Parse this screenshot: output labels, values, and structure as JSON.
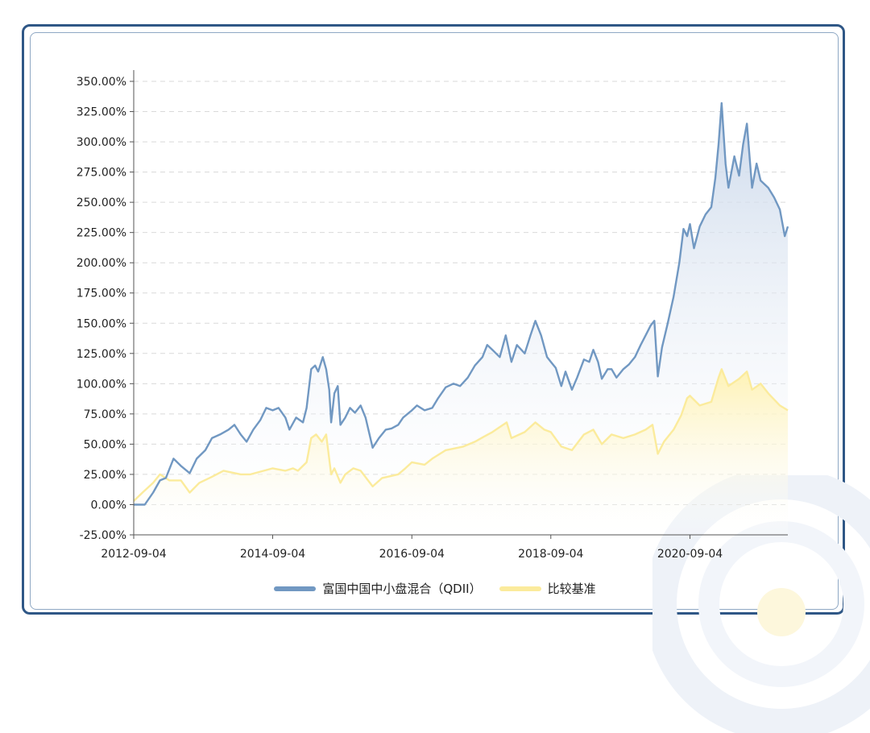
{
  "colors": {
    "frame": "#2f5786",
    "fund_line": "#7198c2",
    "benchmark_line": "#fbeb9c",
    "grid": "#d9d9d9",
    "axis": "#555555"
  },
  "chart_data": {
    "type": "area",
    "title": "",
    "xlabel": "",
    "ylabel": "",
    "x_tick_labels": [
      "2012-09-04",
      "2014-09-04",
      "2016-09-04",
      "2018-09-04",
      "2020-09-04"
    ],
    "y_tick_labels": [
      "-25.00%",
      "0.00%",
      "25.00%",
      "50.00%",
      "75.00%",
      "100.00%",
      "125.00%",
      "150.00%",
      "175.00%",
      "200.00%",
      "225.00%",
      "250.00%",
      "275.00%",
      "300.00%",
      "325.00%",
      "350.00%"
    ],
    "ylim": [
      -25,
      350
    ],
    "xlim": [
      "2012-09-04",
      "2022-01-31"
    ],
    "grid": "horizontal dashed",
    "legend_position": "bottom-center",
    "series": [
      {
        "name": "富国中国中小盘混合（QDII）",
        "color": "#7198c2",
        "points": [
          [
            "2012-09-04",
            0
          ],
          [
            "2012-11-01",
            0
          ],
          [
            "2012-12-15",
            10
          ],
          [
            "2013-01-20",
            20
          ],
          [
            "2013-02-20",
            22
          ],
          [
            "2013-04-01",
            38
          ],
          [
            "2013-05-10",
            32
          ],
          [
            "2013-06-25",
            26
          ],
          [
            "2013-08-01",
            38
          ],
          [
            "2013-09-15",
            45
          ],
          [
            "2013-10-20",
            55
          ],
          [
            "2013-12-01",
            58
          ],
          [
            "2014-01-15",
            62
          ],
          [
            "2014-02-15",
            66
          ],
          [
            "2014-03-20",
            58
          ],
          [
            "2014-04-20",
            52
          ],
          [
            "2014-05-25",
            62
          ],
          [
            "2014-07-01",
            70
          ],
          [
            "2014-08-01",
            80
          ],
          [
            "2014-09-04",
            78
          ],
          [
            "2014-10-05",
            80
          ],
          [
            "2014-11-10",
            72
          ],
          [
            "2014-12-01",
            62
          ],
          [
            "2015-01-05",
            72
          ],
          [
            "2015-02-10",
            68
          ],
          [
            "2015-03-01",
            80
          ],
          [
            "2015-03-25",
            112
          ],
          [
            "2015-04-15",
            115
          ],
          [
            "2015-05-01",
            110
          ],
          [
            "2015-05-25",
            122
          ],
          [
            "2015-06-12",
            112
          ],
          [
            "2015-06-28",
            95
          ],
          [
            "2015-07-08",
            68
          ],
          [
            "2015-07-25",
            92
          ],
          [
            "2015-08-12",
            98
          ],
          [
            "2015-08-26",
            66
          ],
          [
            "2015-09-20",
            72
          ],
          [
            "2015-10-15",
            80
          ],
          [
            "2015-11-10",
            76
          ],
          [
            "2015-12-10",
            82
          ],
          [
            "2016-01-05",
            72
          ],
          [
            "2016-02-11",
            47
          ],
          [
            "2016-03-15",
            55
          ],
          [
            "2016-04-20",
            62
          ],
          [
            "2016-05-20",
            63
          ],
          [
            "2016-06-24",
            66
          ],
          [
            "2016-07-20",
            72
          ],
          [
            "2016-09-04",
            78
          ],
          [
            "2016-10-01",
            82
          ],
          [
            "2016-11-10",
            78
          ],
          [
            "2016-12-20",
            80
          ],
          [
            "2017-01-20",
            88
          ],
          [
            "2017-03-01",
            97
          ],
          [
            "2017-04-10",
            100
          ],
          [
            "2017-05-15",
            98
          ],
          [
            "2017-06-25",
            105
          ],
          [
            "2017-08-01",
            115
          ],
          [
            "2017-09-10",
            122
          ],
          [
            "2017-10-05",
            132
          ],
          [
            "2017-11-01",
            128
          ],
          [
            "2017-12-10",
            122
          ],
          [
            "2018-01-10",
            140
          ],
          [
            "2018-02-09",
            118
          ],
          [
            "2018-03-10",
            132
          ],
          [
            "2018-04-20",
            125
          ],
          [
            "2018-05-20",
            140
          ],
          [
            "2018-06-15",
            152
          ],
          [
            "2018-07-15",
            140
          ],
          [
            "2018-08-15",
            122
          ],
          [
            "2018-09-04",
            118
          ],
          [
            "2018-09-30",
            113
          ],
          [
            "2018-10-29",
            98
          ],
          [
            "2018-11-20",
            110
          ],
          [
            "2018-12-24",
            95
          ],
          [
            "2019-01-20",
            105
          ],
          [
            "2019-02-25",
            120
          ],
          [
            "2019-03-25",
            118
          ],
          [
            "2019-04-15",
            128
          ],
          [
            "2019-05-10",
            118
          ],
          [
            "2019-05-30",
            104
          ],
          [
            "2019-06-30",
            112
          ],
          [
            "2019-07-20",
            112
          ],
          [
            "2019-08-15",
            105
          ],
          [
            "2019-09-20",
            112
          ],
          [
            "2019-10-20",
            116
          ],
          [
            "2019-11-20",
            122
          ],
          [
            "2019-12-20",
            132
          ],
          [
            "2020-01-15",
            140
          ],
          [
            "2020-02-10",
            148
          ],
          [
            "2020-03-01",
            152
          ],
          [
            "2020-03-19",
            106
          ],
          [
            "2020-04-10",
            130
          ],
          [
            "2020-05-10",
            150
          ],
          [
            "2020-06-10",
            172
          ],
          [
            "2020-07-10",
            200
          ],
          [
            "2020-08-01",
            228
          ],
          [
            "2020-08-20",
            222
          ],
          [
            "2020-09-04",
            232
          ],
          [
            "2020-09-25",
            212
          ],
          [
            "2020-10-25",
            230
          ],
          [
            "2020-11-25",
            240
          ],
          [
            "2020-12-25",
            246
          ],
          [
            "2021-01-15",
            270
          ],
          [
            "2021-02-01",
            298
          ],
          [
            "2021-02-17",
            332
          ],
          [
            "2021-03-10",
            282
          ],
          [
            "2021-03-25",
            262
          ],
          [
            "2021-04-25",
            288
          ],
          [
            "2021-05-20",
            272
          ],
          [
            "2021-06-10",
            298
          ],
          [
            "2021-06-30",
            315
          ],
          [
            "2021-07-27",
            262
          ],
          [
            "2021-08-20",
            282
          ],
          [
            "2021-09-10",
            268
          ],
          [
            "2021-10-20",
            262
          ],
          [
            "2021-11-20",
            254
          ],
          [
            "2021-12-20",
            244
          ],
          [
            "2022-01-15",
            222
          ],
          [
            "2022-01-31",
            230
          ]
        ]
      },
      {
        "name": "比较基准",
        "color": "#fbeb9c",
        "points": [
          [
            "2012-09-04",
            3
          ],
          [
            "2012-10-20",
            10
          ],
          [
            "2012-12-15",
            18
          ],
          [
            "2013-01-20",
            25
          ],
          [
            "2013-03-10",
            20
          ],
          [
            "2013-05-10",
            20
          ],
          [
            "2013-06-25",
            10
          ],
          [
            "2013-08-15",
            18
          ],
          [
            "2013-10-20",
            23
          ],
          [
            "2013-12-20",
            28
          ],
          [
            "2014-03-20",
            25
          ],
          [
            "2014-05-10",
            25
          ],
          [
            "2014-07-20",
            28
          ],
          [
            "2014-09-04",
            30
          ],
          [
            "2014-11-10",
            28
          ],
          [
            "2014-12-20",
            30
          ],
          [
            "2015-01-15",
            28
          ],
          [
            "2015-03-01",
            35
          ],
          [
            "2015-03-25",
            55
          ],
          [
            "2015-04-20",
            58
          ],
          [
            "2015-05-20",
            52
          ],
          [
            "2015-06-12",
            58
          ],
          [
            "2015-07-08",
            25
          ],
          [
            "2015-07-25",
            30
          ],
          [
            "2015-08-26",
            18
          ],
          [
            "2015-09-20",
            25
          ],
          [
            "2015-11-01",
            30
          ],
          [
            "2015-12-10",
            28
          ],
          [
            "2016-02-11",
            15
          ],
          [
            "2016-04-01",
            22
          ],
          [
            "2016-06-24",
            25
          ],
          [
            "2016-08-01",
            30
          ],
          [
            "2016-09-04",
            35
          ],
          [
            "2016-11-10",
            33
          ],
          [
            "2016-12-20",
            38
          ],
          [
            "2017-03-01",
            45
          ],
          [
            "2017-06-01",
            48
          ],
          [
            "2017-08-01",
            52
          ],
          [
            "2017-09-15",
            56
          ],
          [
            "2017-11-01",
            60
          ],
          [
            "2018-01-15",
            68
          ],
          [
            "2018-02-09",
            55
          ],
          [
            "2018-04-20",
            60
          ],
          [
            "2018-06-15",
            68
          ],
          [
            "2018-08-01",
            62
          ],
          [
            "2018-09-04",
            60
          ],
          [
            "2018-10-29",
            48
          ],
          [
            "2018-12-24",
            45
          ],
          [
            "2019-02-25",
            58
          ],
          [
            "2019-04-15",
            62
          ],
          [
            "2019-05-30",
            50
          ],
          [
            "2019-07-20",
            58
          ],
          [
            "2019-09-20",
            55
          ],
          [
            "2019-11-20",
            58
          ],
          [
            "2020-01-15",
            62
          ],
          [
            "2020-02-20",
            66
          ],
          [
            "2020-03-19",
            42
          ],
          [
            "2020-04-20",
            52
          ],
          [
            "2020-06-10",
            62
          ],
          [
            "2020-07-20",
            74
          ],
          [
            "2020-08-20",
            88
          ],
          [
            "2020-09-04",
            90
          ],
          [
            "2020-10-25",
            82
          ],
          [
            "2020-12-25",
            85
          ],
          [
            "2021-02-01",
            105
          ],
          [
            "2021-02-17",
            112
          ],
          [
            "2021-03-25",
            98
          ],
          [
            "2021-05-20",
            104
          ],
          [
            "2021-06-30",
            110
          ],
          [
            "2021-07-27",
            95
          ],
          [
            "2021-09-10",
            100
          ],
          [
            "2021-10-20",
            92
          ],
          [
            "2021-12-20",
            82
          ],
          [
            "2022-01-31",
            78
          ]
        ]
      }
    ]
  },
  "legend": {
    "fund_label": "富国中国中小盘混合（QDII）",
    "benchmark_label": "比较基准"
  }
}
